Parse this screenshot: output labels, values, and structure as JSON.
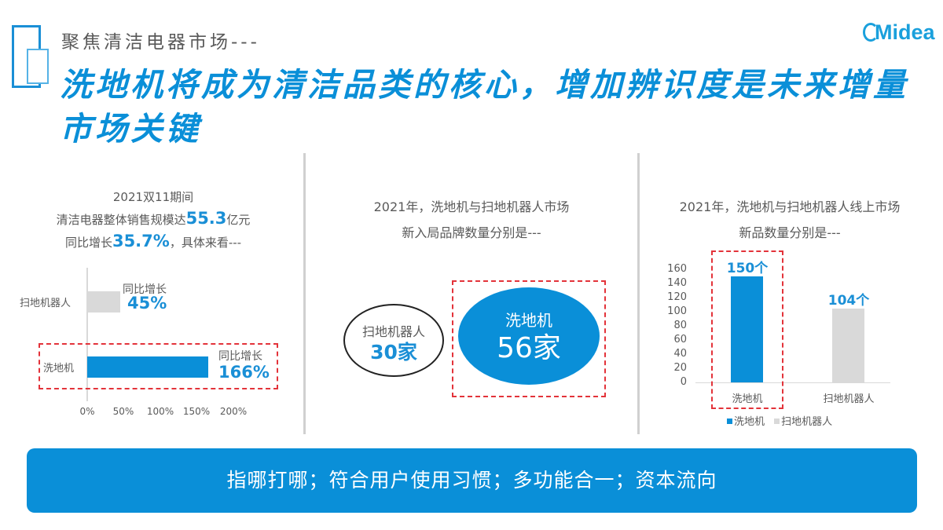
{
  "header": {
    "subtitle": "聚焦清洁电器市场---",
    "title": "洗地机将成为清洁品类的核心，增加辨识度是未来增量市场关键",
    "logo": "idea",
    "logo_full": "Midea"
  },
  "left_panel": {
    "line1": "2021双11期间",
    "line2_prefix": "清洁电器整体销售规模达",
    "line2_value": "55.3",
    "line2_suffix": "亿元",
    "line3_prefix": "同比增长",
    "line3_value": "35.7%",
    "line3_suffix": "，具体来看---"
  },
  "middle_panel": {
    "heading_line1": "2021年，洗地机与扫地机器人市场",
    "heading_line2": "新入局品牌数量分别是---",
    "small": {
      "name": "扫地机器人",
      "value": "30家"
    },
    "big": {
      "name": "洗地机",
      "value": "56家"
    }
  },
  "right_panel": {
    "heading_line1": "2021年，洗地机与扫地机器人线上市场",
    "heading_line2": "新品数量分别是---"
  },
  "banner": {
    "text": "指哪打哪；符合用户使用习惯；多功能合一；资本流向"
  },
  "colors": {
    "accent_blue": "#0a8fd8",
    "gray_bar": "#d9d9d9",
    "highlight_red": "#e3333a"
  },
  "chart_data": [
    {
      "type": "bar",
      "orientation": "horizontal",
      "title": "",
      "categories": [
        "扫地机器人",
        "洗地机"
      ],
      "values": [
        45,
        166
      ],
      "unit": "%",
      "annotations": [
        {
          "category": "扫地机器人",
          "label": "同比增长",
          "value": "45%"
        },
        {
          "category": "洗地机",
          "label": "同比增长",
          "value": "166%"
        }
      ],
      "xticks": [
        "0%",
        "50%",
        "100%",
        "150%",
        "200%"
      ],
      "xlim": [
        0,
        200
      ],
      "colors": [
        "#d9d9d9",
        "#0a8fd8"
      ],
      "highlight": "洗地机",
      "grid": false
    },
    {
      "type": "bar",
      "orientation": "vertical",
      "title": "",
      "categories": [
        "洗地机",
        "扫地机器人"
      ],
      "values": [
        150,
        104
      ],
      "data_labels": [
        "150个",
        "104个"
      ],
      "yticks": [
        0,
        20,
        40,
        60,
        80,
        100,
        120,
        140,
        160
      ],
      "ylim": [
        0,
        160
      ],
      "colors": [
        "#0a8fd8",
        "#d9d9d9"
      ],
      "legend": [
        "洗地机",
        "扫地机器人"
      ],
      "legend_position": "bottom",
      "highlight": "洗地机",
      "grid": false
    }
  ]
}
